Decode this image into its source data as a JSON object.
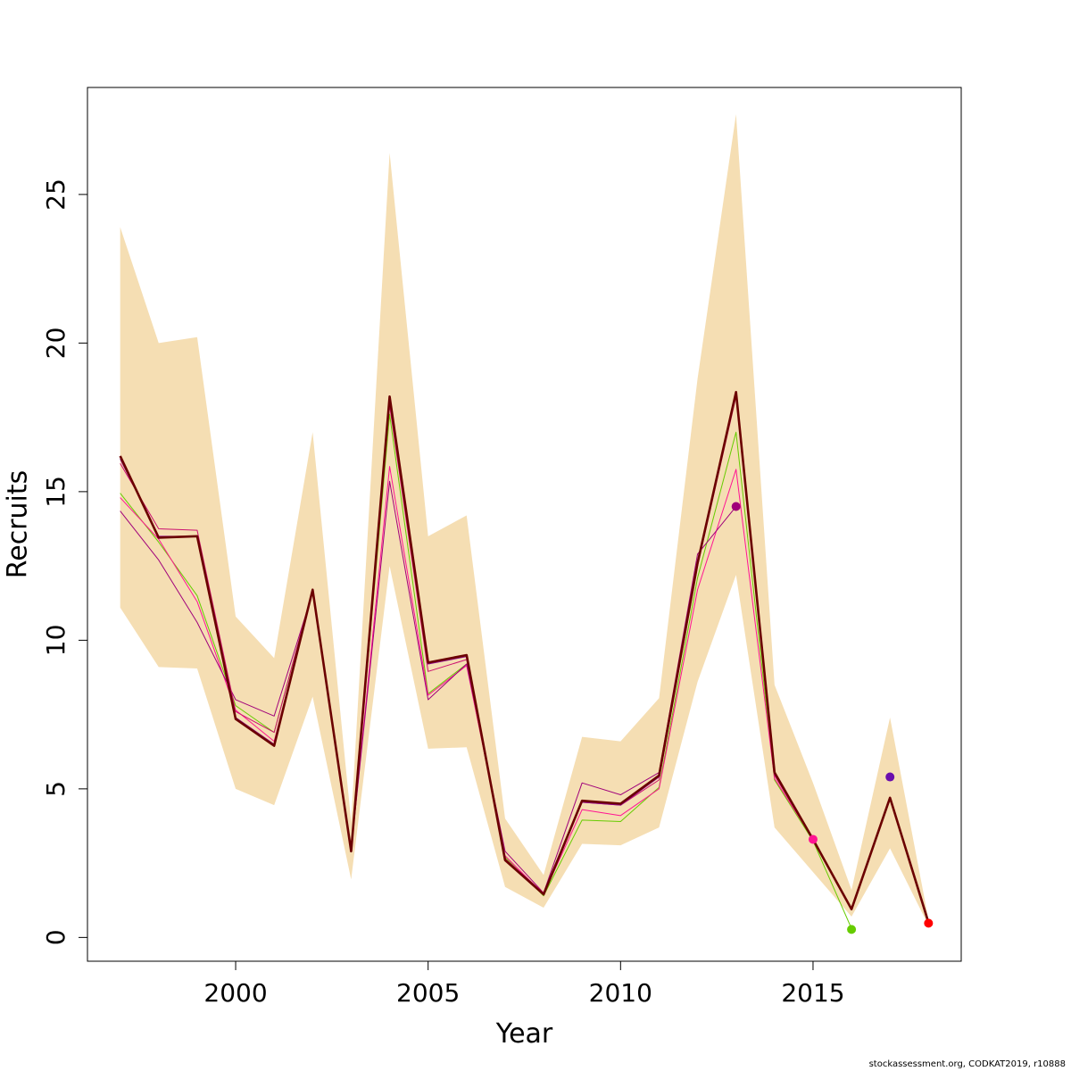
{
  "chart_data": {
    "type": "line",
    "xlabel": "Year",
    "ylabel": "Recruits",
    "xlim": [
      1996.15,
      2018.85
    ],
    "ylim": [
      -0.8,
      28.6
    ],
    "x_ticks": [
      2000,
      2005,
      2010,
      2015
    ],
    "y_ticks": [
      0,
      5,
      10,
      15,
      20,
      25
    ],
    "grid": false,
    "years": [
      1997,
      1998,
      1999,
      2000,
      2001,
      2002,
      2003,
      2004,
      2005,
      2006,
      2007,
      2008,
      2009,
      2010,
      2011,
      2012,
      2013,
      2014,
      2015,
      2016,
      2017,
      2018
    ],
    "confidence_band": {
      "color": "#F5DEB3",
      "lower": [
        11.1,
        9.1,
        9.05,
        5.0,
        4.45,
        8.1,
        1.95,
        12.5,
        6.35,
        6.4,
        1.7,
        1.0,
        3.15,
        3.1,
        3.7,
        8.6,
        12.2,
        3.7,
        2.2,
        0.7,
        3.0,
        0.4
      ],
      "upper": [
        23.9,
        20.0,
        20.2,
        10.8,
        9.4,
        17.0,
        3.9,
        26.4,
        13.5,
        14.2,
        4.0,
        2.1,
        6.75,
        6.6,
        8.05,
        18.8,
        27.7,
        8.5,
        5.2,
        1.6,
        7.4,
        0.6
      ]
    },
    "series": [
      {
        "color": "#6B0000",
        "width": 2.6,
        "values": [
          16.2,
          13.45,
          13.5,
          7.35,
          6.45,
          11.7,
          2.9,
          18.2,
          9.25,
          9.5,
          2.6,
          1.45,
          4.6,
          4.5,
          5.45,
          12.6,
          18.35,
          5.55,
          3.3,
          0.95,
          4.7,
          0.5
        ]
      },
      {
        "color": "#66CC00",
        "width": 1.0,
        "end_point": true,
        "values": [
          14.95,
          13.3,
          11.5,
          7.8,
          6.9,
          11.7,
          2.9,
          17.6,
          8.2,
          9.2,
          2.7,
          1.4,
          3.95,
          3.9,
          5.05,
          12.1,
          17.0,
          5.3,
          3.25,
          0.3
        ]
      },
      {
        "color": "#FF1493",
        "width": 1.0,
        "end_point": true,
        "values": [
          14.8,
          13.4,
          11.3,
          7.65,
          6.6,
          11.65,
          2.9,
          15.85,
          8.15,
          9.15,
          2.75,
          1.45,
          4.3,
          4.1,
          5.0,
          11.7,
          15.75,
          5.35,
          3.3
        ]
      },
      {
        "color": "#A0007A",
        "width": 1.0,
        "end_point": true,
        "values": [
          14.35,
          12.7,
          10.6,
          8.0,
          7.45,
          11.6,
          2.95,
          15.35,
          8.0,
          9.2,
          2.9,
          1.5,
          5.2,
          4.8,
          5.55,
          12.9,
          14.5
        ]
      },
      {
        "color": "#CC1070",
        "width": 1.0,
        "values": [
          15.95,
          13.75,
          13.7,
          7.6,
          6.9,
          11.7,
          2.9,
          17.9,
          8.95,
          9.35,
          2.65,
          1.5,
          4.55,
          4.45,
          5.3,
          12.5,
          18.2,
          5.45,
          3.3,
          0.95,
          4.7
        ]
      },
      {
        "color": "#8B008B",
        "width": 1.0,
        "values": [
          16.1,
          13.5,
          13.5,
          7.4,
          6.5,
          11.7,
          2.9,
          18.1,
          9.2,
          9.45,
          2.6,
          1.45,
          4.55,
          4.45,
          5.4,
          12.6,
          18.3,
          5.5,
          3.3,
          0.95,
          4.65
        ]
      }
    ],
    "points": [
      {
        "x": 2013,
        "y": 14.5,
        "color": "#A0007A"
      },
      {
        "x": 2015,
        "y": 3.3,
        "color": "#FF1493"
      },
      {
        "x": 2016,
        "y": 0.27,
        "color": "#66CC00"
      },
      {
        "x": 2017,
        "y": 5.4,
        "color": "#6A0DAD"
      },
      {
        "x": 2018,
        "y": 0.48,
        "color": "#FF0000"
      }
    ]
  },
  "footer_text": "stockassessment.org, CODKAT2019, r10888"
}
